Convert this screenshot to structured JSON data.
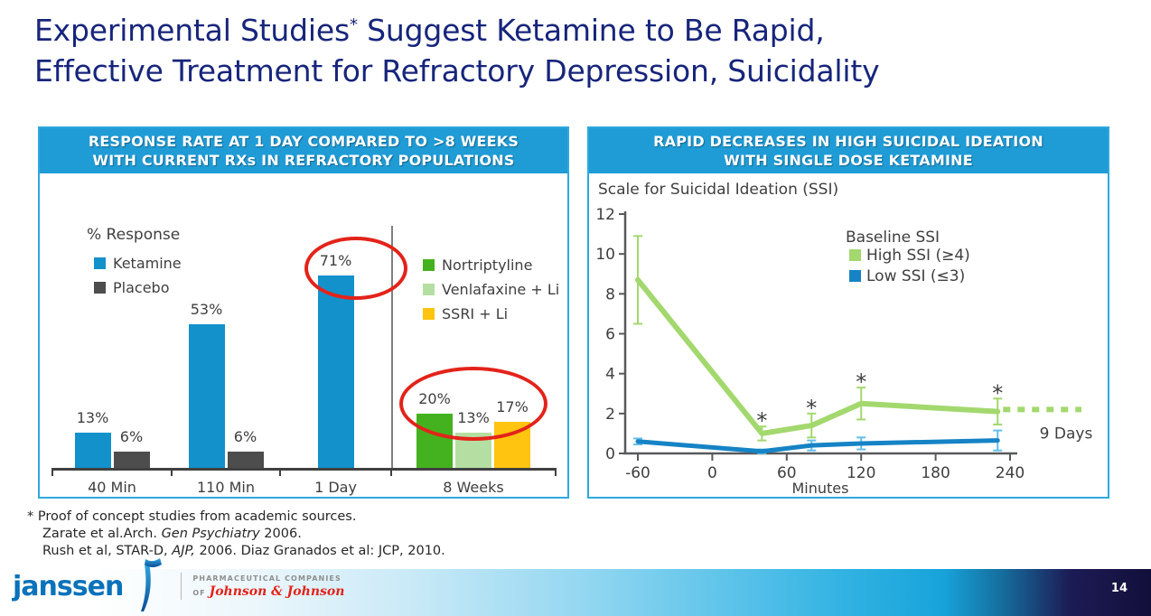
{
  "page": {
    "page_number": "14"
  },
  "title": {
    "pre": "Experimental Studies",
    "sup": "*",
    "post": " Suggest Ketamine to Be Rapid,",
    "line2": "Effective Treatment for Refractory Depression, Suicidality",
    "color": "#17257b"
  },
  "chart_data": [
    {
      "type": "bar",
      "title": "RESPONSE RATE AT 1 DAY COMPARED TO >8 WEEKS WITH CURRENT RXs IN REFRACTORY POPULATIONS",
      "title_line1": "RESPONSE RATE AT 1 DAY COMPARED TO >8 WEEKS",
      "title_line2": "WITH CURRENT RXs IN REFRACTORY POPULATIONS",
      "ylabel": "% Response",
      "unit": "%",
      "categories": [
        "40 Min",
        "110 Min",
        "1 Day",
        "8 Weeks"
      ],
      "series": [
        {
          "name": "Ketamine",
          "color": "#1291cb",
          "values": [
            13,
            53,
            71,
            null
          ]
        },
        {
          "name": "Placebo",
          "color": "#4d4d4d",
          "values": [
            6,
            6,
            null,
            null
          ]
        },
        {
          "name": "Nortriptyline",
          "color": "#44b21e",
          "values": [
            null,
            null,
            null,
            20
          ]
        },
        {
          "name": "Venlafaxine + Li",
          "color": "#b5dfa2",
          "values": [
            null,
            null,
            null,
            13
          ]
        },
        {
          "name": "SSRI + Li",
          "color": "#fec40f",
          "values": [
            null,
            null,
            null,
            17
          ]
        }
      ],
      "legend_left": [
        "Ketamine",
        "Placebo"
      ],
      "legend_right": [
        "Nortriptyline",
        "Venlafaxine + Li",
        "SSRI + Li"
      ],
      "divider_after_category": "1 Day",
      "highlight_color": "#e3231a",
      "highlights": [
        "red ellipse around 71% (Ketamine at 1 Day)",
        "red ellipse around 20% / 13% / 17% labels (8 Weeks)"
      ]
    },
    {
      "type": "line",
      "title": "RAPID DECREASES IN HIGH SUICIDAL IDEATION WITH SINGLE DOSE KETAMINE",
      "title_line1": "RAPID DECREASES IN HIGH SUICIDAL IDEATION",
      "title_line2": "WITH SINGLE DOSE KETAMINE",
      "subtitle": "Scale for Suicidal Ideation (SSI)",
      "xlabel": "Minutes",
      "xlim": [
        -60,
        240
      ],
      "x_ticks": [
        -60,
        0,
        60,
        120,
        180,
        240
      ],
      "ylim": [
        0,
        12
      ],
      "y_ticks": [
        0,
        2,
        4,
        6,
        8,
        10,
        12
      ],
      "legend_title": "Baseline SSI",
      "series": [
        {
          "name": "High SSI (≥4)",
          "color": "#a3d86e",
          "err_color": "#a3d86e",
          "x": [
            -60,
            40,
            80,
            120,
            230
          ],
          "y": [
            8.7,
            1.0,
            1.4,
            2.5,
            2.1
          ],
          "err": [
            2.2,
            0.35,
            0.6,
            0.8,
            0.65
          ],
          "significant": [
            false,
            true,
            true,
            true,
            true
          ]
        },
        {
          "name": "Low SSI (≤3)",
          "color": "#1583c5",
          "err_color": "#63c0e8",
          "x": [
            -60,
            40,
            80,
            120,
            230
          ],
          "y": [
            0.6,
            0.1,
            0.4,
            0.5,
            0.65
          ],
          "err": [
            0.15,
            0.1,
            0.25,
            0.3,
            0.5
          ],
          "significant": [
            false,
            false,
            false,
            false,
            false
          ]
        }
      ],
      "projection": {
        "series": "High SSI (≥4)",
        "label": "9 Days",
        "y": 2.2,
        "style": "dotted"
      }
    }
  ],
  "footnote": {
    "marker": "*",
    "line1": "Proof of concept studies from academic sources.",
    "line2_pre": "Zarate et al.Arch. ",
    "line2_italic": "Gen Psychiatry",
    "line2_post": " 2006.",
    "line3_pre": "Rush et al, STAR-D, ",
    "line3_italic": "AJP,",
    "line3_post": " 2006. Diaz Granados et al: JCP, 2010."
  },
  "footer": {
    "janssen_word": "janssen",
    "tagline": "PHARMACEUTICAL COMPANIES",
    "of": "OF",
    "jnj": "Johnson & Johnson"
  }
}
